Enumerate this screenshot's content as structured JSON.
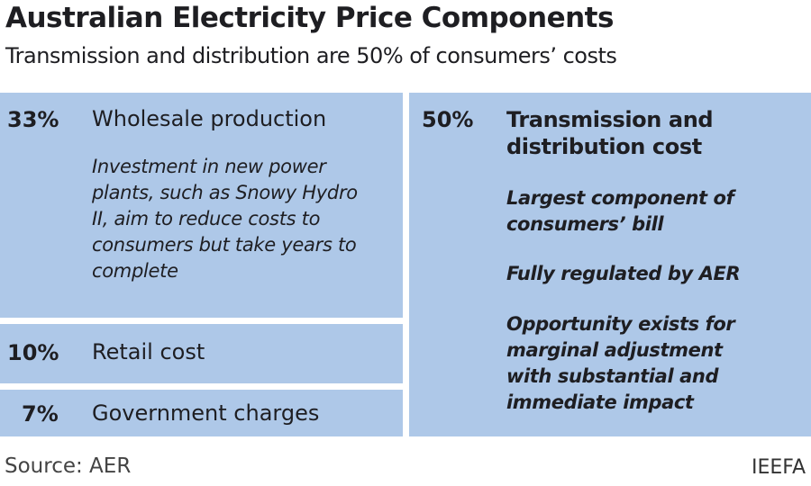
{
  "title": "Australian Electricity Price Components",
  "subtitle": "Transmission and distribution are 50% of consumers’ costs",
  "components": [
    {
      "pct": "33%",
      "label": "Wholesale production",
      "notes": [
        "Investment in new power plants, such as Snowy Hydro II, aim to reduce costs to consumers but take years to complete"
      ]
    },
    {
      "pct": "10%",
      "label": "Retail cost",
      "notes": []
    },
    {
      "pct": "7%",
      "label": "Government charges",
      "notes": []
    },
    {
      "pct": "50%",
      "label": "Transmission and distribution cost",
      "notes": [
        "Largest component of consumers’ bill",
        "Fully regulated by AER",
        "Opportunity exists for marginal adjustment with substantial and immediate impact"
      ]
    }
  ],
  "colors": {
    "box": "#aec8e8",
    "text": "#1e1e22"
  },
  "source": "Source: AER",
  "brand": "IEEFA"
}
